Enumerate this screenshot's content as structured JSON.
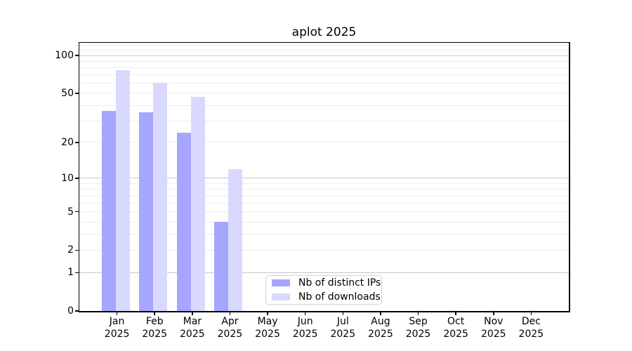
{
  "chart_data": {
    "type": "bar",
    "title": "aplot 2025",
    "categories": [
      "Jan",
      "Feb",
      "Mar",
      "Apr",
      "May",
      "Jun",
      "Jul",
      "Aug",
      "Sep",
      "Oct",
      "Nov",
      "Dec"
    ],
    "x_tick_year": "2025",
    "series": [
      {
        "name": "Nb of distinct IPs",
        "color": "#a6a6ff",
        "values": [
          36,
          35,
          24,
          4,
          0,
          0,
          0,
          0,
          0,
          0,
          0,
          0
        ]
      },
      {
        "name": "Nb of downloads",
        "color": "#d9d9ff",
        "values": [
          76,
          61,
          47,
          12,
          0,
          0,
          0,
          0,
          0,
          0,
          0,
          0
        ]
      }
    ],
    "yscale": "log1p",
    "ylim": [
      0,
      126
    ],
    "y_tick_labels": [
      0,
      1,
      2,
      5,
      10,
      20,
      50,
      100
    ],
    "y_major_gridlines": [
      1,
      10,
      100
    ],
    "y_minor_gridlines": [
      2,
      3,
      4,
      5,
      6,
      7,
      8,
      9,
      20,
      30,
      40,
      50,
      60,
      70,
      80,
      90,
      110,
      120
    ],
    "grid": true,
    "legend_position": "lower center",
    "colors": {
      "major_grid": "#c6c6c6",
      "minor_grid": "#ececec",
      "axis": "#000000",
      "text": "#000000",
      "legend_border": "#d2d2d2"
    }
  }
}
